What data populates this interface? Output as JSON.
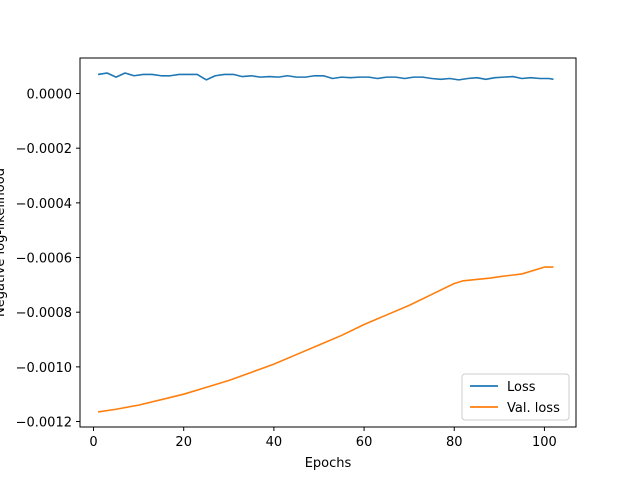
{
  "chart_data": {
    "type": "line",
    "xlabel": "Epochs",
    "ylabel": "Negative log-likelihood",
    "xlim": [
      -3,
      107
    ],
    "ylim": [
      -0.00122,
      0.00013
    ],
    "xticks": [
      0,
      20,
      40,
      60,
      80,
      100
    ],
    "yticks": [
      0.0,
      -0.0002,
      -0.0004,
      -0.0006,
      -0.0008,
      -0.001,
      -0.0012
    ],
    "ytick_labels": [
      "0.0000",
      "−0.0002",
      "−0.0004",
      "−0.0006",
      "−0.0008",
      "−0.0010",
      "−0.0012"
    ],
    "grid": false,
    "legend_position": "lower-right",
    "series": [
      {
        "name": "Loss",
        "color": "#1f77b4",
        "x": [
          1,
          3,
          5,
          7,
          9,
          11,
          13,
          15,
          17,
          19,
          21,
          23,
          25,
          27,
          29,
          31,
          33,
          35,
          37,
          39,
          41,
          43,
          45,
          47,
          49,
          51,
          53,
          55,
          57,
          59,
          61,
          63,
          65,
          67,
          69,
          71,
          73,
          75,
          77,
          79,
          81,
          83,
          85,
          87,
          89,
          91,
          93,
          95,
          97,
          99,
          101,
          102
        ],
        "y": [
          7e-05,
          7.5e-05,
          6e-05,
          7.5e-05,
          6.5e-05,
          7e-05,
          7e-05,
          6.5e-05,
          6.5e-05,
          7e-05,
          7e-05,
          7e-05,
          5e-05,
          6.5e-05,
          7e-05,
          7e-05,
          6.2e-05,
          6.5e-05,
          6e-05,
          6.2e-05,
          6e-05,
          6.5e-05,
          6e-05,
          6e-05,
          6.5e-05,
          6.5e-05,
          5.5e-05,
          6e-05,
          5.8e-05,
          6e-05,
          6e-05,
          5.5e-05,
          6e-05,
          6e-05,
          5.5e-05,
          6e-05,
          6e-05,
          5.5e-05,
          5.2e-05,
          5.5e-05,
          5e-05,
          5.5e-05,
          5.8e-05,
          5.2e-05,
          5.8e-05,
          6e-05,
          6.2e-05,
          5.5e-05,
          5.8e-05,
          5.5e-05,
          5.5e-05,
          5.2e-05
        ]
      },
      {
        "name": "Val. loss",
        "color": "#ff7f0e",
        "x": [
          1,
          5,
          10,
          15,
          20,
          25,
          30,
          35,
          40,
          45,
          50,
          55,
          60,
          65,
          70,
          75,
          80,
          82,
          85,
          88,
          90,
          95,
          100,
          102
        ],
        "y": [
          -0.001165,
          -0.001155,
          -0.00114,
          -0.00112,
          -0.0011,
          -0.001075,
          -0.00105,
          -0.00102,
          -0.00099,
          -0.000955,
          -0.00092,
          -0.000885,
          -0.000845,
          -0.00081,
          -0.000775,
          -0.000735,
          -0.000695,
          -0.000685,
          -0.00068,
          -0.000675,
          -0.00067,
          -0.00066,
          -0.000635,
          -0.000635
        ]
      }
    ]
  }
}
